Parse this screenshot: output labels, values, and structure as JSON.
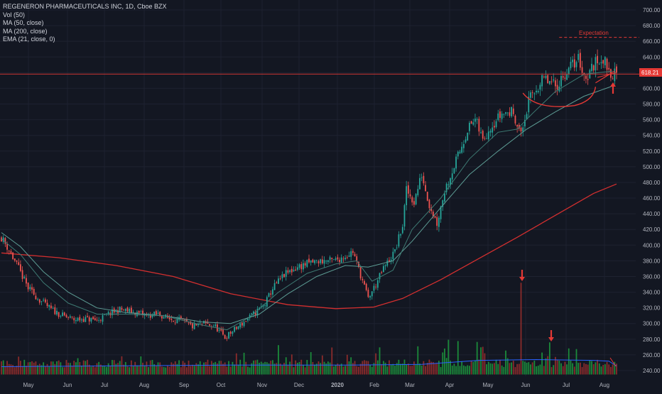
{
  "legend": {
    "title": "REGENERON PHARMACEUTICALS INC, 1D, Cboe BZX",
    "vol": "Vol (50)",
    "ma50": "MA (50, close)",
    "ma200": "MA (200, close)",
    "ema21": "EMA (21, close, 0)"
  },
  "price_tag": "618.21",
  "annotation_text": "Expectation",
  "colors": {
    "background": "#131722",
    "up": "#26a69a",
    "down": "#ef5350",
    "vol_up": "#1b8a3a",
    "vol_down": "#8a2b2b",
    "ma50": "#5d9c94",
    "ema21": "#3e7a73",
    "ma200": "#d32f2f",
    "vol_ma": "#2962ff",
    "annotation": "#e53935",
    "axis_text": "#b2b5be",
    "grid": "#1e2230"
  },
  "chart_data": {
    "type": "candlestick",
    "title": "REGENERON PHARMACEUTICALS INC, 1D, Cboe BZX",
    "x_ticks": [
      "May",
      "Jun",
      "Jul",
      "Aug",
      "Sep",
      "Oct",
      "Nov",
      "Dec",
      "2020",
      "Feb",
      "Mar",
      "Apr",
      "May",
      "Jun",
      "Jul",
      "Aug"
    ],
    "y_ticks": [
      240,
      260,
      280,
      300,
      320,
      340,
      360,
      380,
      400,
      420,
      440,
      460,
      480,
      500,
      520,
      540,
      560,
      580,
      600,
      620,
      640,
      660,
      680,
      700
    ],
    "ylim": [
      235,
      705
    ],
    "last_price": 618.21,
    "price_path": [
      [
        0,
        410
      ],
      [
        3,
        398
      ],
      [
        8,
        375
      ],
      [
        14,
        345
      ],
      [
        20,
        330
      ],
      [
        26,
        318
      ],
      [
        32,
        310
      ],
      [
        38,
        305
      ],
      [
        44,
        306
      ],
      [
        50,
        304
      ],
      [
        56,
        312
      ],
      [
        62,
        318
      ],
      [
        70,
        314
      ],
      [
        76,
        310
      ],
      [
        82,
        312
      ],
      [
        88,
        306
      ],
      [
        94,
        304
      ],
      [
        100,
        296
      ],
      [
        106,
        300
      ],
      [
        112,
        296
      ],
      [
        117,
        282
      ],
      [
        120,
        288
      ],
      [
        126,
        300
      ],
      [
        132,
        312
      ],
      [
        138,
        325
      ],
      [
        142,
        345
      ],
      [
        148,
        362
      ],
      [
        155,
        372
      ],
      [
        162,
        378
      ],
      [
        168,
        380
      ],
      [
        174,
        380
      ],
      [
        180,
        386
      ],
      [
        184,
        392
      ],
      [
        188,
        362
      ],
      [
        192,
        332
      ],
      [
        196,
        350
      ],
      [
        200,
        370
      ],
      [
        206,
        392
      ],
      [
        210,
        425
      ],
      [
        212,
        470
      ],
      [
        216,
        455
      ],
      [
        220,
        490
      ],
      [
        224,
        452
      ],
      [
        228,
        428
      ],
      [
        232,
        470
      ],
      [
        236,
        495
      ],
      [
        240,
        520
      ],
      [
        244,
        548
      ],
      [
        248,
        560
      ],
      [
        252,
        534
      ],
      [
        256,
        552
      ],
      [
        262,
        568
      ],
      [
        268,
        570
      ],
      [
        272,
        540
      ],
      [
        276,
        583
      ],
      [
        280,
        600
      ],
      [
        284,
        612
      ],
      [
        290,
        602
      ],
      [
        296,
        622
      ],
      [
        302,
        638
      ],
      [
        306,
        612
      ],
      [
        310,
        630
      ],
      [
        314,
        640
      ],
      [
        318,
        624
      ],
      [
        320,
        618
      ]
    ],
    "series": [
      {
        "name": "MA (200, close)",
        "path": [
          [
            0,
            390
          ],
          [
            30,
            384
          ],
          [
            60,
            374
          ],
          [
            90,
            360
          ],
          [
            120,
            338
          ],
          [
            150,
            324
          ],
          [
            175,
            319
          ],
          [
            195,
            321
          ],
          [
            210,
            332
          ],
          [
            230,
            356
          ],
          [
            250,
            383
          ],
          [
            270,
            410
          ],
          [
            290,
            438
          ],
          [
            310,
            466
          ],
          [
            322,
            478
          ]
        ]
      },
      {
        "name": "MA (50, close)",
        "path": [
          [
            0,
            416
          ],
          [
            10,
            398
          ],
          [
            22,
            366
          ],
          [
            35,
            340
          ],
          [
            50,
            320
          ],
          [
            65,
            314
          ],
          [
            85,
            310
          ],
          [
            105,
            302
          ],
          [
            120,
            300
          ],
          [
            135,
            312
          ],
          [
            150,
            338
          ],
          [
            165,
            360
          ],
          [
            180,
            374
          ],
          [
            192,
            372
          ],
          [
            205,
            380
          ],
          [
            215,
            405
          ],
          [
            230,
            448
          ],
          [
            245,
            490
          ],
          [
            260,
            520
          ],
          [
            275,
            548
          ],
          [
            290,
            570
          ],
          [
            305,
            590
          ],
          [
            320,
            603
          ]
        ]
      },
      {
        "name": "EMA (21, close, 0)",
        "path": [
          [
            0,
            408
          ],
          [
            10,
            388
          ],
          [
            22,
            352
          ],
          [
            35,
            326
          ],
          [
            50,
            312
          ],
          [
            65,
            312
          ],
          [
            85,
            310
          ],
          [
            105,
            298
          ],
          [
            118,
            292
          ],
          [
            130,
            308
          ],
          [
            145,
            340
          ],
          [
            160,
            364
          ],
          [
            175,
            376
          ],
          [
            186,
            380
          ],
          [
            194,
            354
          ],
          [
            205,
            368
          ],
          [
            215,
            420
          ],
          [
            230,
            460
          ],
          [
            245,
            510
          ],
          [
            260,
            544
          ],
          [
            270,
            548
          ],
          [
            278,
            568
          ],
          [
            290,
            596
          ],
          [
            305,
            618
          ],
          [
            320,
            622
          ]
        ]
      }
    ],
    "volume_markers": [
      {
        "bar_index": 272,
        "volume_level": 352
      },
      {
        "bar_index": 287,
        "volume_level": 276
      }
    ],
    "expectation_level": 665,
    "x_axis_label": "",
    "y_axis_label": ""
  }
}
